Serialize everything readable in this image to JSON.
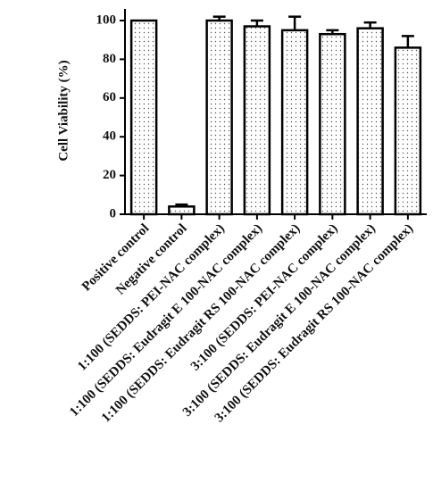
{
  "chart_data": {
    "type": "bar",
    "y_label": "Cell Viability (%)",
    "categories": [
      "Positive control",
      "Negative control",
      "1:100 (SEDDS: PEI-NAC complex)",
      "1:100 (SEDDS: Eudragit E 100-NAC complex)",
      "1:100 (SEDDS: Eudragit RS 100-NAC complex)",
      "3:100 (SEDDS: PEI-NAC complex)",
      "3:100 (SEDDS: Eudragit E 100-NAC complex)",
      "3:100 (SEDDS: Eudragit RS 100-NAC complex)"
    ],
    "values": [
      100,
      4,
      100,
      97,
      95,
      93,
      96,
      86
    ],
    "errors": [
      0,
      1,
      2,
      3,
      7,
      2,
      3,
      6
    ],
    "ylim": [
      0,
      106
    ],
    "yticks": [
      0,
      20,
      40,
      60,
      80,
      100
    ]
  }
}
